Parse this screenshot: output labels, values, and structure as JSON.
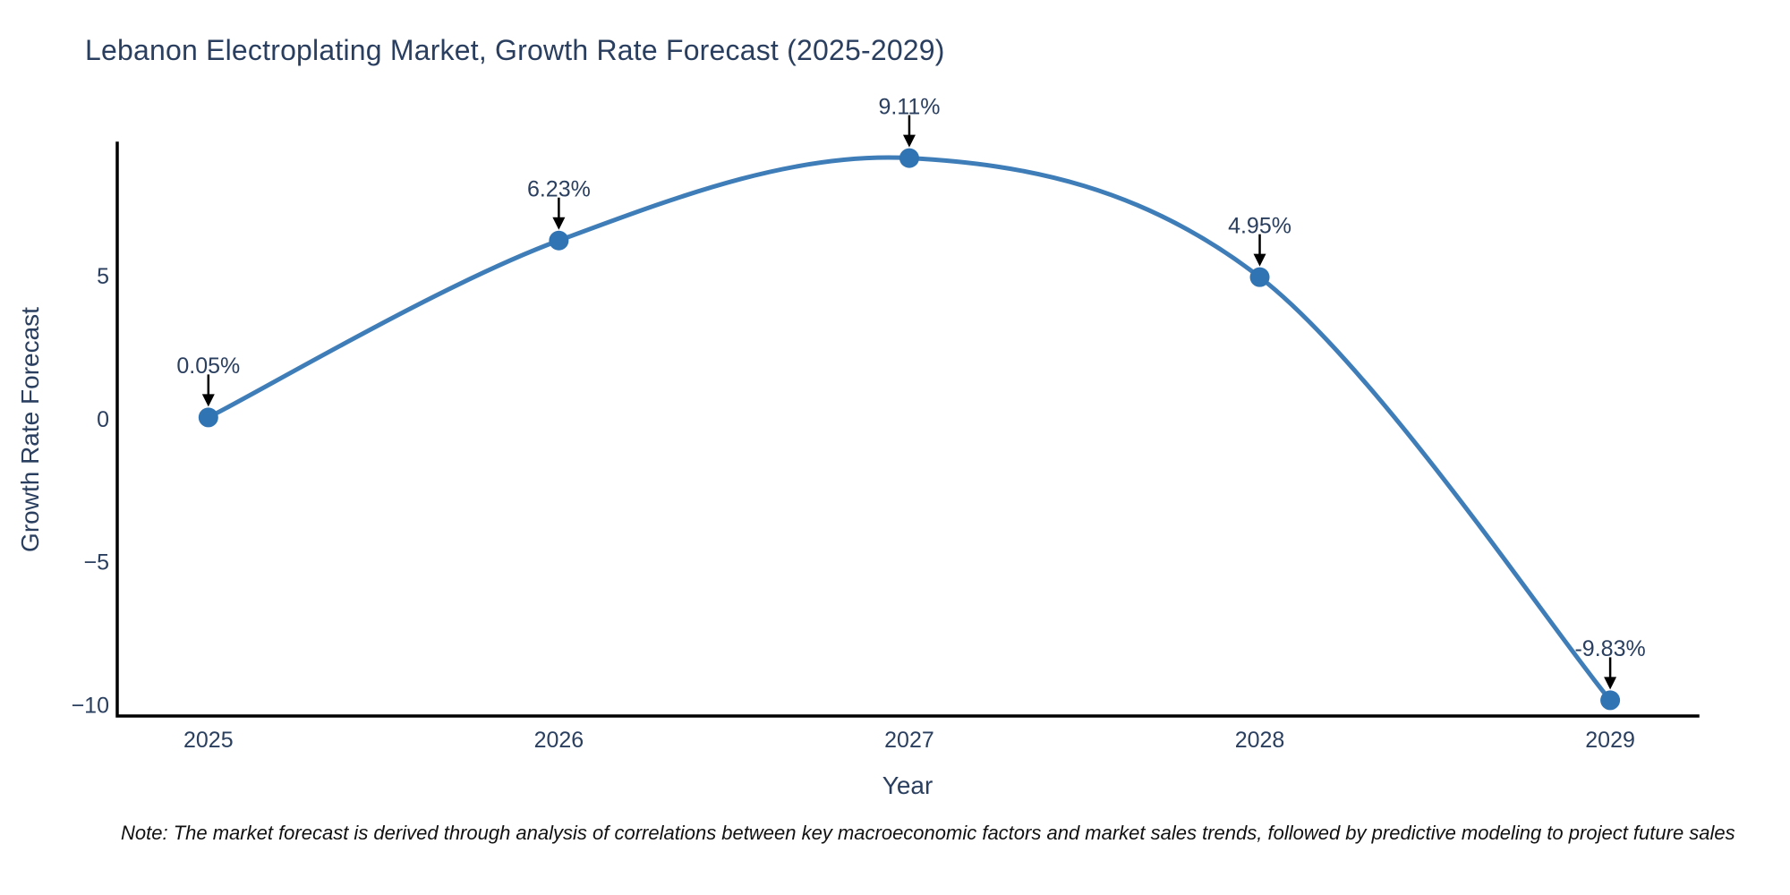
{
  "note": "Note: The market forecast is derived through analysis of correlations between key macroeconomic factors and market sales trends, followed by predictive modeling to project future sales",
  "chart_data": {
    "type": "line",
    "title": "Lebanon Electroplating Market, Growth Rate Forecast (2025-2029)",
    "xlabel": "Year",
    "ylabel": "Growth Rate Forecast",
    "x": [
      2025,
      2026,
      2027,
      2028,
      2029
    ],
    "values": [
      0.05,
      6.23,
      9.11,
      4.95,
      -9.83
    ],
    "point_labels": [
      "0.05%",
      "6.23%",
      "9.11%",
      "4.95%",
      "-9.83%"
    ],
    "xtick_labels": [
      "2025",
      "2026",
      "2027",
      "2028",
      "2029"
    ],
    "yticks": [
      5,
      0,
      -5,
      -10
    ],
    "ytick_labels": [
      "5",
      "0",
      "−5",
      "−10"
    ],
    "xlim": [
      2024.74,
      2029.25
    ],
    "ylim": [
      -10.38,
      9.63
    ],
    "grid": false,
    "legend": "none",
    "line_shape": "spline",
    "colors": {
      "line": "#3e7db8",
      "marker": "#3174b3",
      "axis": "#000000",
      "text": "#2a3f5f",
      "annotation_arrow": "#000000"
    }
  }
}
